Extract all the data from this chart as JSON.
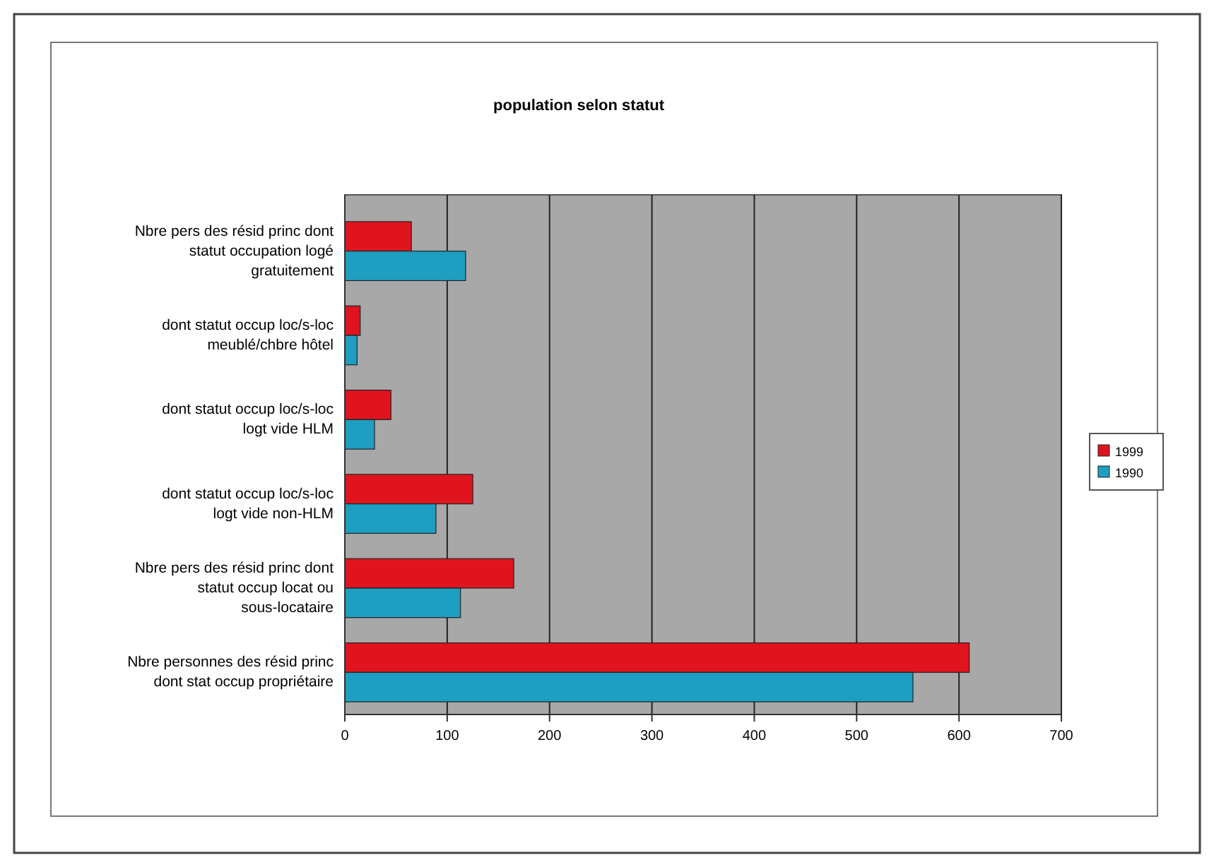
{
  "chart_data": {
    "type": "bar",
    "orientation": "horizontal",
    "title": "population selon statut",
    "categories": [
      "Nbre pers des résid princ dont statut occupation logé gratuitement",
      "dont statut occup loc/s-loc meublé/chbre hôtel",
      "dont statut occup loc/s-loc logt vide HLM",
      "dont statut occup loc/s-loc logt vide non-HLM",
      "Nbre pers des résid princ dont statut occup locat ou sous-locataire",
      "Nbre personnes des résid princ dont stat occup propriétaire"
    ],
    "series": [
      {
        "name": "1999",
        "color": "#e0141e",
        "values": [
          65,
          15,
          45,
          125,
          165,
          610
        ]
      },
      {
        "name": "1990",
        "color": "#1e9ec0",
        "values": [
          118,
          12,
          29,
          89,
          113,
          555
        ]
      }
    ],
    "xlim": [
      0,
      700
    ],
    "xticks": [
      0,
      100,
      200,
      300,
      400,
      500,
      600,
      700
    ],
    "grid": "x",
    "legend": "right"
  }
}
